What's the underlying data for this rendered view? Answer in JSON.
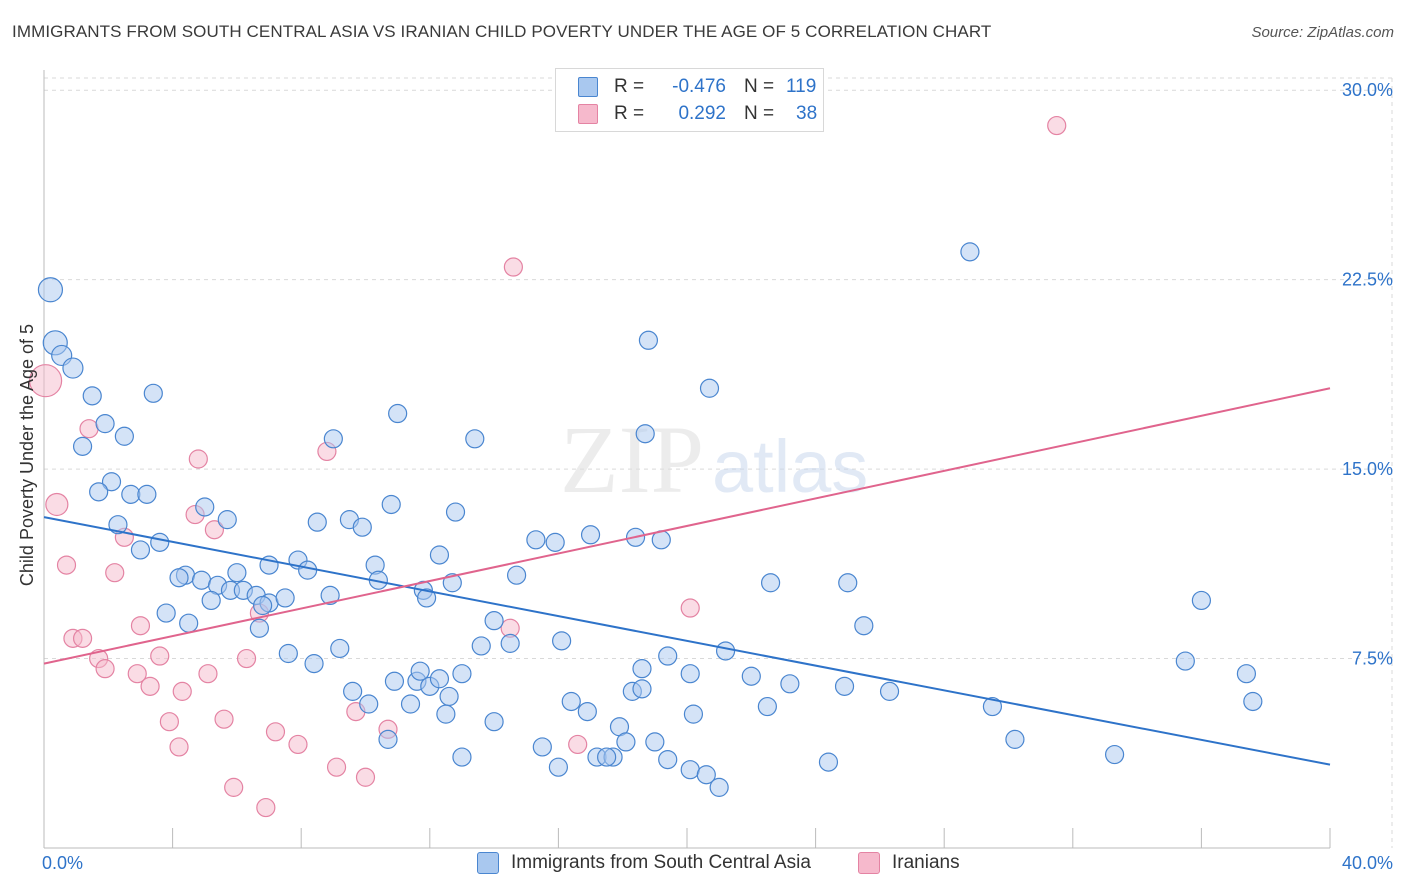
{
  "title": "IMMIGRANTS FROM SOUTH CENTRAL ASIA VS IRANIAN CHILD POVERTY UNDER THE AGE OF 5 CORRELATION CHART",
  "source": "Source: ZipAtlas.com",
  "watermark": {
    "zip": "ZIP",
    "atlas": "atlas"
  },
  "legend": {
    "rows": [
      {
        "r_label": "R =",
        "r_value": "-0.476",
        "n_label": "N =",
        "n_value": "119"
      },
      {
        "r_label": "R =",
        "r_value": "0.292",
        "n_label": "N =",
        "n_value": "38"
      }
    ]
  },
  "bottom_legend": {
    "series1": "Immigrants from South Central Asia",
    "series2": "Iranians"
  },
  "colors": {
    "blue_fill": "#a9c8ef",
    "blue_stroke": "#4a86d0",
    "blue_line": "#2e73c9",
    "pink_fill": "#f6b9cc",
    "pink_stroke": "#e483a3",
    "pink_line": "#e0648d",
    "tick_text": "#2e73c9"
  },
  "chart_data": {
    "type": "scatter",
    "title": "IMMIGRANTS FROM SOUTH CENTRAL ASIA VS IRANIAN CHILD POVERTY UNDER THE AGE OF 5 CORRELATION CHART",
    "xlabel": "",
    "ylabel": "Child Poverty Under the Age of 5",
    "xlim": [
      0,
      40
    ],
    "ylim": [
      0,
      30.8
    ],
    "x_tick_labels": [
      "0.0%",
      "40.0%"
    ],
    "y_ticks": [
      7.5,
      15.0,
      22.5,
      30.0
    ],
    "y_tick_labels": [
      "7.5%",
      "15.0%",
      "22.5%",
      "30.0%"
    ],
    "grid": true,
    "series": [
      {
        "name": "Immigrants from South Central Asia",
        "r": -0.476,
        "n": 119,
        "trend": {
          "x": [
            0,
            40
          ],
          "y": [
            13.1,
            3.3
          ]
        },
        "points": [
          {
            "x": 0.2,
            "y": 22.1,
            "s": 12
          },
          {
            "x": 0.35,
            "y": 20.0,
            "s": 12
          },
          {
            "x": 0.55,
            "y": 19.5,
            "s": 10
          },
          {
            "x": 0.9,
            "y": 19.0,
            "s": 10
          },
          {
            "x": 1.5,
            "y": 17.9,
            "s": 9
          },
          {
            "x": 1.9,
            "y": 16.8,
            "s": 9
          },
          {
            "x": 2.5,
            "y": 16.3,
            "s": 9
          },
          {
            "x": 3.4,
            "y": 18.0,
            "s": 9
          },
          {
            "x": 1.2,
            "y": 15.9,
            "s": 9
          },
          {
            "x": 2.1,
            "y": 14.5,
            "s": 9
          },
          {
            "x": 1.7,
            "y": 14.1,
            "s": 9
          },
          {
            "x": 2.7,
            "y": 14.0,
            "s": 9
          },
          {
            "x": 3.2,
            "y": 14.0,
            "s": 9
          },
          {
            "x": 2.3,
            "y": 12.8,
            "s": 9
          },
          {
            "x": 3.6,
            "y": 12.1,
            "s": 9
          },
          {
            "x": 3.0,
            "y": 11.8,
            "s": 9
          },
          {
            "x": 4.4,
            "y": 10.8,
            "s": 9
          },
          {
            "x": 4.2,
            "y": 10.7,
            "s": 9
          },
          {
            "x": 4.9,
            "y": 10.6,
            "s": 9
          },
          {
            "x": 5.4,
            "y": 10.4,
            "s": 9
          },
          {
            "x": 5.2,
            "y": 9.8,
            "s": 9
          },
          {
            "x": 5.8,
            "y": 10.2,
            "s": 9
          },
          {
            "x": 6.2,
            "y": 10.2,
            "s": 9
          },
          {
            "x": 6.0,
            "y": 10.9,
            "s": 9
          },
          {
            "x": 6.6,
            "y": 10.0,
            "s": 9
          },
          {
            "x": 7.0,
            "y": 9.7,
            "s": 9
          },
          {
            "x": 7.5,
            "y": 9.9,
            "s": 9
          },
          {
            "x": 6.8,
            "y": 9.6,
            "s": 9
          },
          {
            "x": 3.8,
            "y": 9.3,
            "s": 9
          },
          {
            "x": 4.5,
            "y": 8.9,
            "s": 9
          },
          {
            "x": 5.0,
            "y": 13.5,
            "s": 9
          },
          {
            "x": 5.7,
            "y": 13.0,
            "s": 9
          },
          {
            "x": 7.0,
            "y": 11.2,
            "s": 9
          },
          {
            "x": 7.9,
            "y": 11.4,
            "s": 9
          },
          {
            "x": 8.2,
            "y": 11.0,
            "s": 9
          },
          {
            "x": 8.9,
            "y": 10.0,
            "s": 9
          },
          {
            "x": 8.5,
            "y": 12.9,
            "s": 9
          },
          {
            "x": 9.5,
            "y": 13.0,
            "s": 9
          },
          {
            "x": 9.9,
            "y": 12.7,
            "s": 9
          },
          {
            "x": 10.8,
            "y": 13.6,
            "s": 9
          },
          {
            "x": 10.3,
            "y": 11.2,
            "s": 9
          },
          {
            "x": 10.4,
            "y": 10.6,
            "s": 9
          },
          {
            "x": 9.0,
            "y": 16.2,
            "s": 9
          },
          {
            "x": 11.0,
            "y": 17.2,
            "s": 9
          },
          {
            "x": 13.4,
            "y": 16.2,
            "s": 9
          },
          {
            "x": 12.8,
            "y": 13.3,
            "s": 9
          },
          {
            "x": 12.3,
            "y": 11.6,
            "s": 9
          },
          {
            "x": 11.8,
            "y": 10.2,
            "s": 9
          },
          {
            "x": 11.9,
            "y": 9.9,
            "s": 9
          },
          {
            "x": 12.7,
            "y": 10.5,
            "s": 9
          },
          {
            "x": 6.7,
            "y": 8.7,
            "s": 9
          },
          {
            "x": 7.6,
            "y": 7.7,
            "s": 9
          },
          {
            "x": 8.4,
            "y": 7.3,
            "s": 9
          },
          {
            "x": 9.2,
            "y": 7.9,
            "s": 9
          },
          {
            "x": 9.6,
            "y": 6.2,
            "s": 9
          },
          {
            "x": 10.1,
            "y": 5.7,
            "s": 9
          },
          {
            "x": 10.9,
            "y": 6.6,
            "s": 9
          },
          {
            "x": 11.4,
            "y": 5.7,
            "s": 9
          },
          {
            "x": 11.6,
            "y": 6.6,
            "s": 9
          },
          {
            "x": 11.7,
            "y": 7.0,
            "s": 9
          },
          {
            "x": 12.0,
            "y": 6.4,
            "s": 9
          },
          {
            "x": 12.3,
            "y": 6.7,
            "s": 9
          },
          {
            "x": 12.6,
            "y": 6.0,
            "s": 9
          },
          {
            "x": 12.5,
            "y": 5.3,
            "s": 9
          },
          {
            "x": 10.7,
            "y": 4.3,
            "s": 9
          },
          {
            "x": 13.6,
            "y": 8.0,
            "s": 9
          },
          {
            "x": 14.0,
            "y": 9.0,
            "s": 9
          },
          {
            "x": 14.5,
            "y": 8.1,
            "s": 9
          },
          {
            "x": 14.7,
            "y": 10.8,
            "s": 9
          },
          {
            "x": 15.9,
            "y": 12.1,
            "s": 9
          },
          {
            "x": 15.3,
            "y": 12.2,
            "s": 9
          },
          {
            "x": 16.1,
            "y": 8.2,
            "s": 9
          },
          {
            "x": 17.0,
            "y": 12.4,
            "s": 9
          },
          {
            "x": 18.4,
            "y": 12.3,
            "s": 9
          },
          {
            "x": 19.2,
            "y": 12.2,
            "s": 9
          },
          {
            "x": 18.7,
            "y": 16.4,
            "s": 9
          },
          {
            "x": 18.8,
            "y": 20.1,
            "s": 9
          },
          {
            "x": 20.7,
            "y": 18.2,
            "s": 9
          },
          {
            "x": 13.0,
            "y": 6.9,
            "s": 9
          },
          {
            "x": 14.0,
            "y": 5.0,
            "s": 9
          },
          {
            "x": 13.0,
            "y": 3.6,
            "s": 9
          },
          {
            "x": 15.5,
            "y": 4.0,
            "s": 9
          },
          {
            "x": 16.0,
            "y": 3.2,
            "s": 9
          },
          {
            "x": 16.9,
            "y": 5.4,
            "s": 9
          },
          {
            "x": 16.4,
            "y": 5.8,
            "s": 9
          },
          {
            "x": 17.2,
            "y": 3.6,
            "s": 9
          },
          {
            "x": 17.7,
            "y": 3.6,
            "s": 9
          },
          {
            "x": 17.9,
            "y": 4.8,
            "s": 9
          },
          {
            "x": 18.1,
            "y": 4.2,
            "s": 9
          },
          {
            "x": 18.3,
            "y": 6.2,
            "s": 9
          },
          {
            "x": 18.6,
            "y": 6.3,
            "s": 9
          },
          {
            "x": 18.6,
            "y": 7.1,
            "s": 9
          },
          {
            "x": 19.4,
            "y": 7.6,
            "s": 9
          },
          {
            "x": 19.4,
            "y": 3.5,
            "s": 9
          },
          {
            "x": 19.0,
            "y": 4.2,
            "s": 9
          },
          {
            "x": 20.1,
            "y": 6.9,
            "s": 9
          },
          {
            "x": 20.2,
            "y": 5.3,
            "s": 9
          },
          {
            "x": 20.1,
            "y": 3.1,
            "s": 9
          },
          {
            "x": 20.6,
            "y": 2.9,
            "s": 9
          },
          {
            "x": 21.0,
            "y": 2.4,
            "s": 9
          },
          {
            "x": 21.2,
            "y": 7.8,
            "s": 9
          },
          {
            "x": 22.0,
            "y": 6.8,
            "s": 9
          },
          {
            "x": 22.5,
            "y": 5.6,
            "s": 9
          },
          {
            "x": 22.6,
            "y": 10.5,
            "s": 9
          },
          {
            "x": 23.2,
            "y": 6.5,
            "s": 9
          },
          {
            "x": 24.4,
            "y": 3.4,
            "s": 9
          },
          {
            "x": 25.0,
            "y": 10.5,
            "s": 9
          },
          {
            "x": 25.5,
            "y": 8.8,
            "s": 9
          },
          {
            "x": 28.8,
            "y": 23.6,
            "s": 9
          },
          {
            "x": 29.5,
            "y": 5.6,
            "s": 9
          },
          {
            "x": 30.2,
            "y": 4.3,
            "s": 9
          },
          {
            "x": 33.3,
            "y": 3.7,
            "s": 9
          },
          {
            "x": 35.5,
            "y": 7.4,
            "s": 9
          },
          {
            "x": 36.0,
            "y": 9.8,
            "s": 9
          },
          {
            "x": 37.4,
            "y": 6.9,
            "s": 9
          },
          {
            "x": 37.6,
            "y": 5.8,
            "s": 9
          },
          {
            "x": 24.9,
            "y": 6.4,
            "s": 9
          },
          {
            "x": 26.3,
            "y": 6.2,
            "s": 9
          },
          {
            "x": 17.5,
            "y": 3.6,
            "s": 9
          }
        ]
      },
      {
        "name": "Iranians",
        "r": 0.292,
        "n": 38,
        "trend": {
          "x": [
            0,
            40
          ],
          "y": [
            7.3,
            18.2
          ]
        },
        "points": [
          {
            "x": 0.05,
            "y": 18.5,
            "s": 16
          },
          {
            "x": 0.4,
            "y": 13.6,
            "s": 11
          },
          {
            "x": 0.7,
            "y": 11.2,
            "s": 9
          },
          {
            "x": 0.9,
            "y": 8.3,
            "s": 9
          },
          {
            "x": 1.2,
            "y": 8.3,
            "s": 9
          },
          {
            "x": 1.4,
            "y": 16.6,
            "s": 9
          },
          {
            "x": 1.7,
            "y": 7.5,
            "s": 9
          },
          {
            "x": 1.9,
            "y": 7.1,
            "s": 9
          },
          {
            "x": 2.2,
            "y": 10.9,
            "s": 9
          },
          {
            "x": 2.5,
            "y": 12.3,
            "s": 9
          },
          {
            "x": 2.9,
            "y": 6.9,
            "s": 9
          },
          {
            "x": 3.0,
            "y": 8.8,
            "s": 9
          },
          {
            "x": 3.3,
            "y": 6.4,
            "s": 9
          },
          {
            "x": 3.6,
            "y": 7.6,
            "s": 9
          },
          {
            "x": 3.9,
            "y": 5.0,
            "s": 9
          },
          {
            "x": 4.2,
            "y": 4.0,
            "s": 9
          },
          {
            "x": 4.3,
            "y": 6.2,
            "s": 9
          },
          {
            "x": 4.7,
            "y": 13.2,
            "s": 9
          },
          {
            "x": 4.8,
            "y": 15.4,
            "s": 9
          },
          {
            "x": 5.1,
            "y": 6.9,
            "s": 9
          },
          {
            "x": 5.3,
            "y": 12.6,
            "s": 9
          },
          {
            "x": 5.6,
            "y": 5.1,
            "s": 9
          },
          {
            "x": 5.9,
            "y": 2.4,
            "s": 9
          },
          {
            "x": 6.3,
            "y": 7.5,
            "s": 9
          },
          {
            "x": 6.7,
            "y": 9.3,
            "s": 9
          },
          {
            "x": 6.9,
            "y": 1.6,
            "s": 9
          },
          {
            "x": 7.2,
            "y": 4.6,
            "s": 9
          },
          {
            "x": 7.9,
            "y": 4.1,
            "s": 9
          },
          {
            "x": 8.8,
            "y": 15.7,
            "s": 9
          },
          {
            "x": 9.1,
            "y": 3.2,
            "s": 9
          },
          {
            "x": 9.7,
            "y": 5.4,
            "s": 9
          },
          {
            "x": 10.0,
            "y": 2.8,
            "s": 9
          },
          {
            "x": 10.7,
            "y": 4.7,
            "s": 9
          },
          {
            "x": 14.6,
            "y": 23.0,
            "s": 9
          },
          {
            "x": 14.5,
            "y": 8.7,
            "s": 9
          },
          {
            "x": 16.6,
            "y": 4.1,
            "s": 9
          },
          {
            "x": 20.1,
            "y": 9.5,
            "s": 9
          },
          {
            "x": 31.5,
            "y": 28.6,
            "s": 9
          }
        ]
      }
    ]
  }
}
